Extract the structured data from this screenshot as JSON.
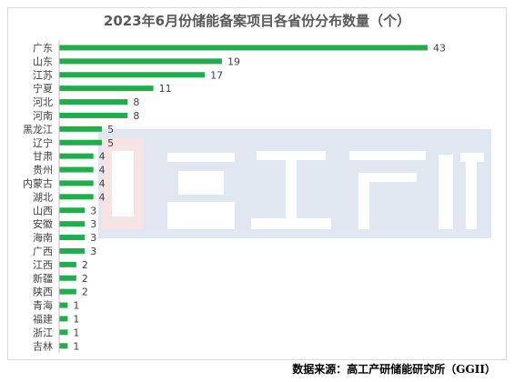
{
  "chart_data": {
    "type": "bar",
    "orientation": "horizontal",
    "title": "2023年6月份储能备案项目各省份分布数量（个）",
    "categories": [
      "广东",
      "山东",
      "江苏",
      "宁夏",
      "河北",
      "河南",
      "黑龙江",
      "辽宁",
      "甘肃",
      "贵州",
      "内蒙古",
      "湖北",
      "山西",
      "安徽",
      "海南",
      "广西",
      "江西",
      "新疆",
      "陕西",
      "青海",
      "福建",
      "浙江",
      "吉林"
    ],
    "values": [
      43,
      19,
      17,
      11,
      8,
      8,
      5,
      5,
      4,
      4,
      4,
      4,
      3,
      3,
      3,
      3,
      2,
      2,
      2,
      1,
      1,
      1,
      1
    ],
    "data_labels": true,
    "grid": false,
    "xlim": [
      0,
      43
    ],
    "bar_color": "#21ad4b",
    "watermark_color": "#4a6fa5"
  },
  "source": "数据来源：高工产研储能研究所（GGII）"
}
